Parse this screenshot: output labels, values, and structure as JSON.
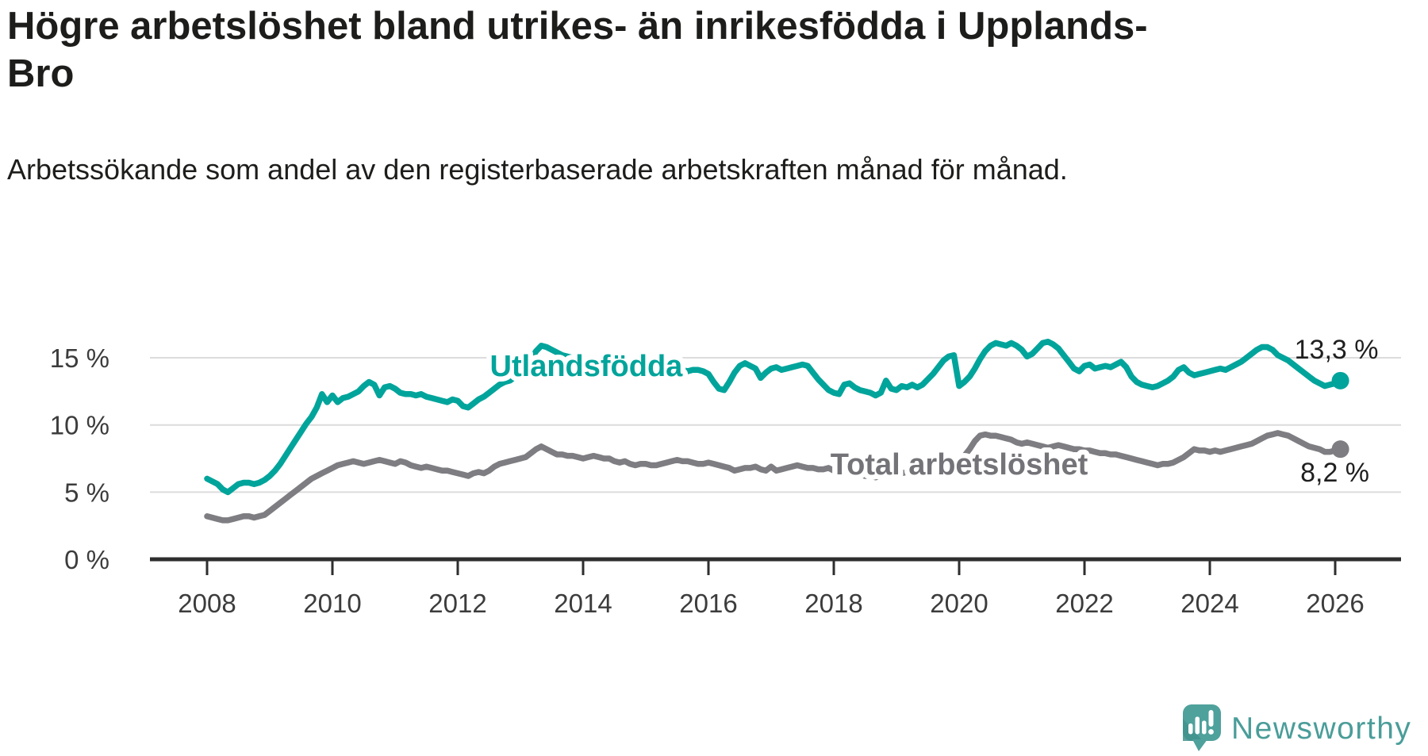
{
  "header": {
    "title": "Högre arbetslöshet bland utrikes- än inrikesfödda i Upplands-Bro",
    "subtitle": "Arbetssökande som andel av den registerbaserade arbetskraften månad för månad."
  },
  "footer": {
    "brand": "Newsworthy"
  },
  "colors": {
    "foreign_born_series": "#00a49b",
    "total_series": "#7d7d82",
    "total_label": "#737378",
    "grid": "#dcdcdc",
    "axis": "#2e2e2e",
    "tick_text": "#3c3c3c",
    "end_label_text": "#1f1f1f",
    "background": "#ffffff",
    "logo_teal": "#4fa19c",
    "logo_teal_dark": "#3f928d",
    "logo_text": "#4a9d99"
  },
  "chart_data": {
    "type": "line",
    "title": "Högre arbetslöshet bland utrikes- än inrikesfödda i Upplands-Bro",
    "subtitle": "Arbetssökande som andel av den registerbaserade arbetskraften månad för månad.",
    "x_start_year": 2008,
    "x_step_months": 1,
    "x_end": "2026-02",
    "xlabel": "",
    "ylabel": "",
    "ylim": [
      0,
      17
    ],
    "grid": "horizontal",
    "legend_position": "inline-labels",
    "x_ticks": [
      2008,
      2010,
      2012,
      2014,
      2016,
      2018,
      2020,
      2022,
      2024,
      2026
    ],
    "y_ticks": [
      {
        "value": 0,
        "label": "0 %"
      },
      {
        "value": 5,
        "label": "5 %"
      },
      {
        "value": 10,
        "label": "10 %"
      },
      {
        "value": 15,
        "label": "15 %"
      }
    ],
    "series": [
      {
        "name": "Utlandsfödda",
        "color": "#00a49b",
        "end_label": "13,3 %",
        "end_value": 13.3,
        "values": [
          6.0,
          5.8,
          5.6,
          5.2,
          5.0,
          5.3,
          5.6,
          5.7,
          5.7,
          5.6,
          5.7,
          5.9,
          6.2,
          6.6,
          7.1,
          7.7,
          8.3,
          8.9,
          9.5,
          10.1,
          10.6,
          11.3,
          12.3,
          11.7,
          12.2,
          11.7,
          12.0,
          12.1,
          12.3,
          12.5,
          12.9,
          13.2,
          13.0,
          12.2,
          12.8,
          12.9,
          12.7,
          12.4,
          12.3,
          12.3,
          12.2,
          12.3,
          12.1,
          12.0,
          11.9,
          11.8,
          11.7,
          11.9,
          11.8,
          11.4,
          11.3,
          11.6,
          11.9,
          12.1,
          12.4,
          12.7,
          13.0,
          13.2,
          13.3,
          13.6,
          13.9,
          14.4,
          14.9,
          15.5,
          15.9,
          15.8,
          15.6,
          15.4,
          15.2,
          15.1,
          15.0,
          14.9,
          14.8,
          14.7,
          14.6,
          14.5,
          14.4,
          14.4,
          14.3,
          14.3,
          14.2,
          14.2,
          14.1,
          14.1,
          14.1,
          14.0,
          13.9,
          13.9,
          14.0,
          14.0,
          14.1,
          14.1,
          14.0,
          14.1,
          14.1,
          14.0,
          13.8,
          13.2,
          12.7,
          12.6,
          13.2,
          13.9,
          14.4,
          14.6,
          14.4,
          14.2,
          13.5,
          13.9,
          14.2,
          14.3,
          14.1,
          14.2,
          14.3,
          14.4,
          14.5,
          14.4,
          13.9,
          13.4,
          13.0,
          12.6,
          12.4,
          12.3,
          13.0,
          13.1,
          12.8,
          12.6,
          12.5,
          12.4,
          12.2,
          12.4,
          13.3,
          12.7,
          12.6,
          12.9,
          12.8,
          13.0,
          12.8,
          13.0,
          13.4,
          13.8,
          14.3,
          14.8,
          15.1,
          15.2,
          12.9,
          13.2,
          13.6,
          14.2,
          14.9,
          15.5,
          15.9,
          16.1,
          16.0,
          15.9,
          16.1,
          15.9,
          15.6,
          15.1,
          15.3,
          15.7,
          16.1,
          16.2,
          16.0,
          15.7,
          15.2,
          14.7,
          14.2,
          14.0,
          14.4,
          14.5,
          14.2,
          14.3,
          14.4,
          14.3,
          14.5,
          14.7,
          14.3,
          13.6,
          13.2,
          13.0,
          12.9,
          12.8,
          12.9,
          13.1,
          13.3,
          13.6,
          14.1,
          14.3,
          13.9,
          13.7,
          13.8,
          13.9,
          14.0,
          14.1,
          14.2,
          14.1,
          14.3,
          14.5,
          14.7,
          15.0,
          15.3,
          15.6,
          15.8,
          15.8,
          15.6,
          15.2,
          15.0,
          14.8,
          14.5,
          14.2,
          13.9,
          13.6,
          13.3,
          13.1,
          12.9,
          13.0,
          13.1,
          13.3
        ]
      },
      {
        "name": "Total arbetslöshet",
        "color": "#7d7d82",
        "end_label": "8,2 %",
        "end_value": 8.2,
        "values": [
          3.2,
          3.1,
          3.0,
          2.9,
          2.9,
          3.0,
          3.1,
          3.2,
          3.2,
          3.1,
          3.2,
          3.3,
          3.6,
          3.9,
          4.2,
          4.5,
          4.8,
          5.1,
          5.4,
          5.7,
          6.0,
          6.2,
          6.4,
          6.6,
          6.8,
          7.0,
          7.1,
          7.2,
          7.3,
          7.2,
          7.1,
          7.2,
          7.3,
          7.4,
          7.3,
          7.2,
          7.1,
          7.3,
          7.2,
          7.0,
          6.9,
          6.8,
          6.9,
          6.8,
          6.7,
          6.6,
          6.6,
          6.5,
          6.4,
          6.3,
          6.2,
          6.4,
          6.5,
          6.4,
          6.6,
          6.9,
          7.1,
          7.2,
          7.3,
          7.4,
          7.5,
          7.6,
          7.9,
          8.2,
          8.4,
          8.2,
          8.0,
          7.8,
          7.8,
          7.7,
          7.7,
          7.6,
          7.5,
          7.6,
          7.7,
          7.6,
          7.5,
          7.5,
          7.3,
          7.2,
          7.3,
          7.1,
          7.0,
          7.1,
          7.1,
          7.0,
          7.0,
          7.1,
          7.2,
          7.3,
          7.4,
          7.3,
          7.3,
          7.2,
          7.1,
          7.1,
          7.2,
          7.1,
          7.0,
          6.9,
          6.8,
          6.6,
          6.7,
          6.8,
          6.8,
          6.9,
          6.7,
          6.6,
          6.9,
          6.6,
          6.7,
          6.8,
          6.9,
          7.0,
          6.9,
          6.8,
          6.8,
          6.7,
          6.7,
          6.8,
          6.6,
          6.5,
          6.4,
          6.4,
          6.3,
          6.3,
          6.2,
          6.2,
          6.1,
          6.2,
          6.2,
          6.3,
          6.3,
          6.4,
          6.5,
          6.6,
          6.8,
          6.9,
          7.0,
          7.1,
          7.2,
          7.3,
          7.4,
          7.4,
          7.5,
          7.7,
          8.2,
          8.8,
          9.2,
          9.3,
          9.2,
          9.2,
          9.1,
          9.0,
          8.9,
          8.7,
          8.6,
          8.7,
          8.6,
          8.5,
          8.4,
          8.3,
          8.4,
          8.5,
          8.4,
          8.3,
          8.2,
          8.2,
          8.1,
          8.1,
          8.0,
          7.9,
          7.9,
          7.8,
          7.8,
          7.7,
          7.6,
          7.5,
          7.4,
          7.3,
          7.2,
          7.1,
          7.0,
          7.1,
          7.1,
          7.2,
          7.4,
          7.6,
          7.9,
          8.2,
          8.1,
          8.1,
          8.0,
          8.1,
          8.0,
          8.1,
          8.2,
          8.3,
          8.4,
          8.5,
          8.6,
          8.8,
          9.0,
          9.2,
          9.3,
          9.4,
          9.3,
          9.2,
          9.0,
          8.8,
          8.6,
          8.4,
          8.3,
          8.2,
          8.0,
          8.0,
          8.1,
          8.2
        ]
      }
    ]
  }
}
